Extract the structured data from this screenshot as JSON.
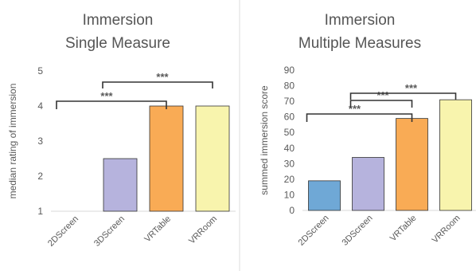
{
  "colors": {
    "2DScreen": "#6fa8d6",
    "3DScreen": "#b6b3dd",
    "VRTable": "#f9ab55",
    "VRRoom": "#f8f4ad",
    "text": "#595959",
    "axis": "#d9d9d9",
    "bar_edge": "#333333",
    "bracket": "#333333"
  },
  "chart_data": [
    {
      "type": "bar",
      "title": "Immersion",
      "subtitle": "Single Measure",
      "ylabel": "median rating of immersion",
      "xlabel": "",
      "ylim": [
        1,
        5
      ],
      "yticks": [
        "1",
        "2",
        "3",
        "4",
        "5"
      ],
      "categories": [
        "2DScreen",
        "3DScreen",
        "VRTable",
        "VRRoom"
      ],
      "values": [
        1,
        2.5,
        4,
        4
      ],
      "grid": false,
      "significance": [
        {
          "from": 0,
          "to": 2,
          "label": "***"
        },
        {
          "from": 1,
          "to": 3,
          "label": "***"
        }
      ]
    },
    {
      "type": "bar",
      "title": "Immersion",
      "subtitle": "Multiple Measures",
      "ylabel": "summed immersion score",
      "xlabel": "",
      "ylim": [
        0,
        90
      ],
      "yticks": [
        "0",
        "10",
        "20",
        "30",
        "40",
        "50",
        "60",
        "70",
        "80",
        "90"
      ],
      "categories": [
        "2DScreen",
        "3DScreen",
        "VRTable",
        "VRRoom"
      ],
      "values": [
        19,
        34,
        59,
        71
      ],
      "grid": false,
      "significance": [
        {
          "from": 0,
          "to": 2,
          "label": "***"
        },
        {
          "from": 1,
          "to": 2,
          "label": "***"
        },
        {
          "from": 1,
          "to": 3,
          "label": "***"
        }
      ]
    }
  ]
}
